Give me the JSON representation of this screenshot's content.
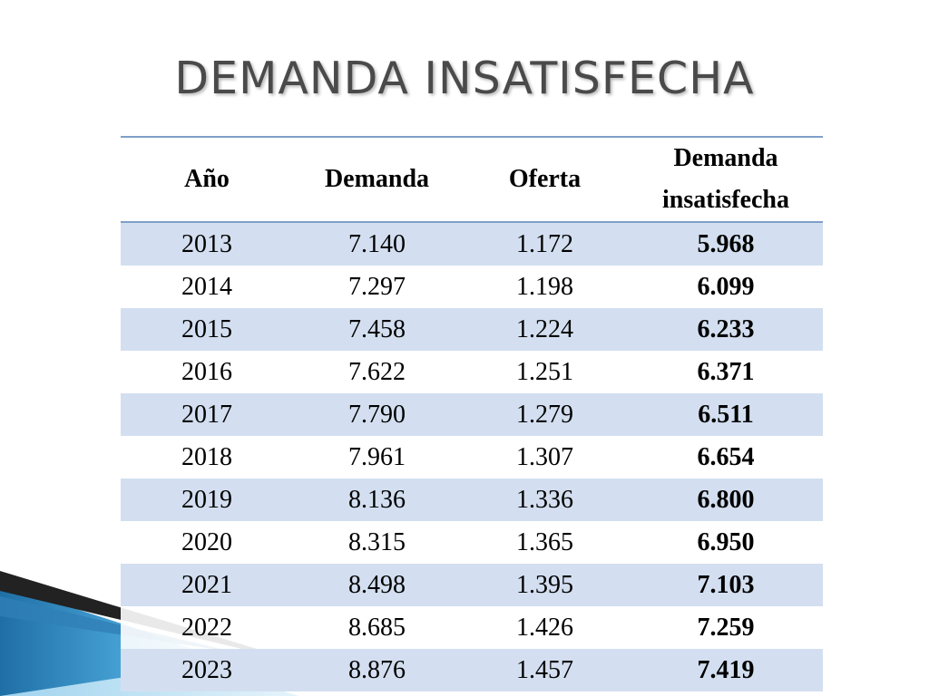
{
  "slide": {
    "title": "DEMANDA INSATISFECHA"
  },
  "table": {
    "headers": {
      "year": "Año",
      "demand": "Demanda",
      "supply": "Oferta",
      "unmet_line1": "Demanda",
      "unmet_line2": "insatisfecha"
    },
    "rows": [
      {
        "year": "2013",
        "demand": "7.140",
        "supply": "1.172",
        "unmet": "5.968"
      },
      {
        "year": "2014",
        "demand": "7.297",
        "supply": "1.198",
        "unmet": "6.099"
      },
      {
        "year": "2015",
        "demand": "7.458",
        "supply": "1.224",
        "unmet": "6.233"
      },
      {
        "year": "2016",
        "demand": "7.622",
        "supply": "1.251",
        "unmet": "6.371"
      },
      {
        "year": "2017",
        "demand": "7.790",
        "supply": "1.279",
        "unmet": "6.511"
      },
      {
        "year": "2018",
        "demand": "7.961",
        "supply": "1.307",
        "unmet": "6.654"
      },
      {
        "year": "2019",
        "demand": "8.136",
        "supply": "1.336",
        "unmet": "6.800"
      },
      {
        "year": "2020",
        "demand": "8.315",
        "supply": "1.365",
        "unmet": "6.950"
      },
      {
        "year": "2021",
        "demand": "8.498",
        "supply": "1.395",
        "unmet": "7.103"
      },
      {
        "year": "2022",
        "demand": "8.685",
        "supply": "1.426",
        "unmet": "7.259"
      },
      {
        "year": "2023",
        "demand": "8.876",
        "supply": "1.457",
        "unmet": "7.419"
      }
    ]
  },
  "colors": {
    "shaded_row": "#d3dff0",
    "header_border": "#7f9fc7",
    "title": "#4a4a4a",
    "accent_blue": "#2f7fb5"
  }
}
